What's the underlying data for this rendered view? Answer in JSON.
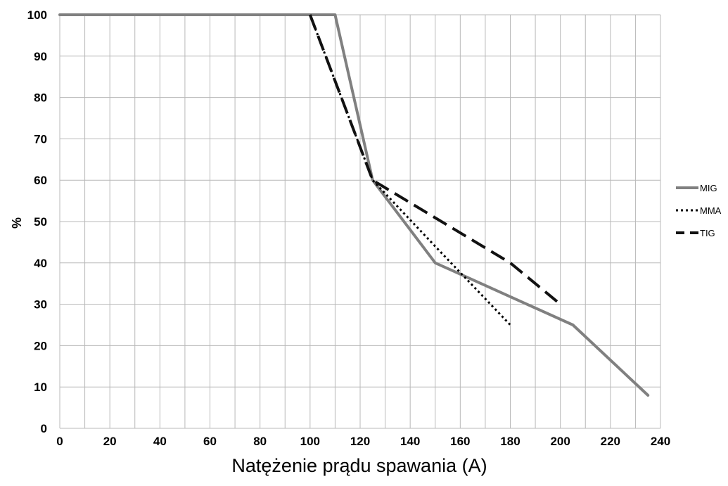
{
  "chart_data": {
    "type": "line",
    "xlabel": "Natężenie prądu spawania (A)",
    "ylabel": "%",
    "xlim": [
      0,
      240
    ],
    "ylim": [
      0,
      100
    ],
    "x_ticks": [
      "0",
      "20",
      "40",
      "60",
      "80",
      "100",
      "120",
      "140",
      "160",
      "180",
      "200",
      "220",
      "240"
    ],
    "y_ticks": [
      "0",
      "10",
      "20",
      "30",
      "40",
      "50",
      "60",
      "70",
      "80",
      "90",
      "100"
    ],
    "grid": true,
    "legend_position": "right",
    "series": [
      {
        "name": "MIG",
        "style": "solid",
        "color": "#808080",
        "x": [
          0,
          110,
          125,
          150,
          205,
          235
        ],
        "y": [
          100,
          100,
          60,
          40,
          25,
          8
        ]
      },
      {
        "name": "MMA",
        "style": "dotted",
        "color": "#000000",
        "x": [
          100,
          125,
          150,
          180
        ],
        "y": [
          100,
          60,
          44,
          25
        ]
      },
      {
        "name": "TIG",
        "style": "dashed",
        "color": "#111111",
        "x": [
          100,
          125,
          180,
          200
        ],
        "y": [
          100,
          60,
          40,
          30
        ]
      }
    ]
  }
}
